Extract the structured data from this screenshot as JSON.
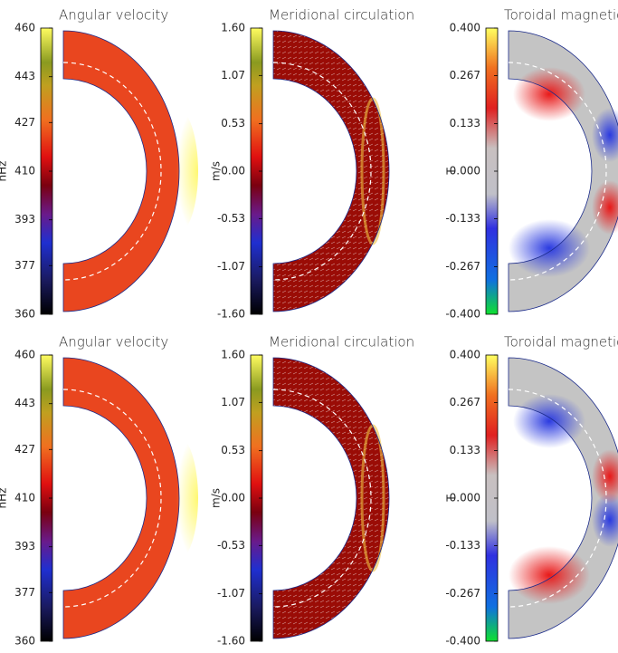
{
  "chart_data": [
    {
      "type": "contour",
      "title": "Angular velocity",
      "colorbar_label": "nHz",
      "clim": [
        360,
        460
      ],
      "cticks": [
        460,
        443,
        427,
        410,
        393,
        377,
        360
      ],
      "colormap": "rainbow",
      "fill": "#e9461f"
    },
    {
      "type": "contour",
      "title": "Meridional circulation",
      "colorbar_label": "m/s",
      "clim": [
        -1.6,
        1.6
      ],
      "cticks": [
        {
          "value": 1.6,
          "label": "1.60"
        },
        1.07,
        0.53,
        {
          "value": 0,
          "label": "0.00"
        },
        -0.53,
        -1.07,
        {
          "value": -1.6,
          "label": "-1.60"
        }
      ],
      "colormap": "rainbow",
      "fill": "#9a0c06"
    },
    {
      "type": "contour",
      "title": "Toroidal magnetic field",
      "colorbar_label": "T",
      "clim": [
        -0.4,
        0.4
      ],
      "cticks": [
        {
          "value": 0.4,
          "label": "0.400"
        },
        0.267,
        0.133,
        {
          "value": 0,
          "label": "0.000"
        },
        -0.133,
        -0.267,
        {
          "value": -0.4,
          "label": "-0.400"
        }
      ],
      "colormap": "diverging",
      "fill": "#c4c4c4"
    },
    {
      "type": "contour",
      "title": "Angular velocity",
      "colorbar_label": "nHz",
      "clim": [
        360,
        460
      ],
      "cticks": [
        460,
        443,
        427,
        410,
        393,
        377,
        360
      ],
      "colormap": "rainbow",
      "fill": "#e9461f"
    },
    {
      "type": "contour",
      "title": "Meridional circulation",
      "colorbar_label": "m/s",
      "clim": [
        -1.6,
        1.6
      ],
      "cticks": [
        {
          "value": 1.6,
          "label": "1.60"
        },
        1.07,
        0.53,
        {
          "value": 0,
          "label": "0.00"
        },
        -0.53,
        -1.07,
        {
          "value": -1.6,
          "label": "-1.60"
        }
      ],
      "colormap": "rainbow",
      "fill": "#9a0c06"
    },
    {
      "type": "contour",
      "title": "Toroidal magnetic field",
      "colorbar_label": "T",
      "clim": [
        -0.4,
        0.4
      ],
      "cticks": [
        {
          "value": 0.4,
          "label": "0.400"
        },
        0.267,
        0.133,
        {
          "value": 0,
          "label": "0.000"
        },
        -0.133,
        -0.267,
        {
          "value": -0.4,
          "label": "-0.400"
        }
      ],
      "colormap": "diverging",
      "fill": "#c4c4c4"
    }
  ]
}
